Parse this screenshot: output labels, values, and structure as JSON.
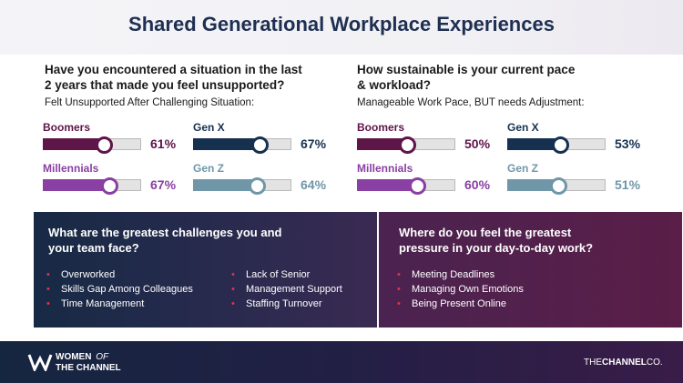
{
  "title": "Shared Generational Workplace Experiences",
  "left_question": {
    "line1": "Have you encountered a situation in the last",
    "line2": "2 years that made you feel unsupported?",
    "subtitle": "Felt Unsupported After Challenging Situation:"
  },
  "right_question": {
    "line1": "How sustainable is your current pace",
    "line2": "& workload?",
    "subtitle": "Manageable Work Pace, BUT needs Adjustment:"
  },
  "colors": {
    "boomers": "#5e1548",
    "gen_x": "#15314f",
    "millennials": "#8a3fa3",
    "gen_z": "#6f97a8",
    "bullet": "#e0344a"
  },
  "chart_data": [
    {
      "type": "bar",
      "title": "Felt Unsupported After Challenging Situation:",
      "categories": [
        "Boomers",
        "Gen X",
        "Millennials",
        "Gen Z"
      ],
      "values": [
        61,
        67,
        67,
        64
      ],
      "labels": [
        "61%",
        "67%",
        "67%",
        "64%"
      ],
      "ylim": [
        0,
        100
      ]
    },
    {
      "type": "bar",
      "title": "Manageable Work Pace, BUT needs Adjustment:",
      "categories": [
        "Boomers",
        "Gen X",
        "Millennials",
        "Gen Z"
      ],
      "values": [
        50,
        53,
        60,
        51
      ],
      "labels": [
        "50%",
        "53%",
        "60%",
        "51%"
      ],
      "ylim": [
        0,
        100
      ]
    }
  ],
  "challenges": {
    "heading_line1": "What are the greatest challenges you and",
    "heading_line2": "your team face?",
    "col1": [
      "Overworked",
      "Skills Gap Among Colleagues",
      "Time Management"
    ],
    "col2": [
      "Lack of Senior",
      "Management Support",
      "Staffing Turnover"
    ]
  },
  "pressure": {
    "heading_line1": "Where do you feel the greatest",
    "heading_line2": "pressure in your day-to-day work?",
    "items": [
      "Meeting Deadlines",
      "Managing Own Emotions",
      "Being Present Online"
    ]
  },
  "footer": {
    "logo_top_left": "WOMEN",
    "logo_top_right": "OF",
    "logo_bottom": "THE CHANNEL",
    "brand_left": "THE",
    "brand_mid": "CHANNEL",
    "brand_right": "CO."
  }
}
